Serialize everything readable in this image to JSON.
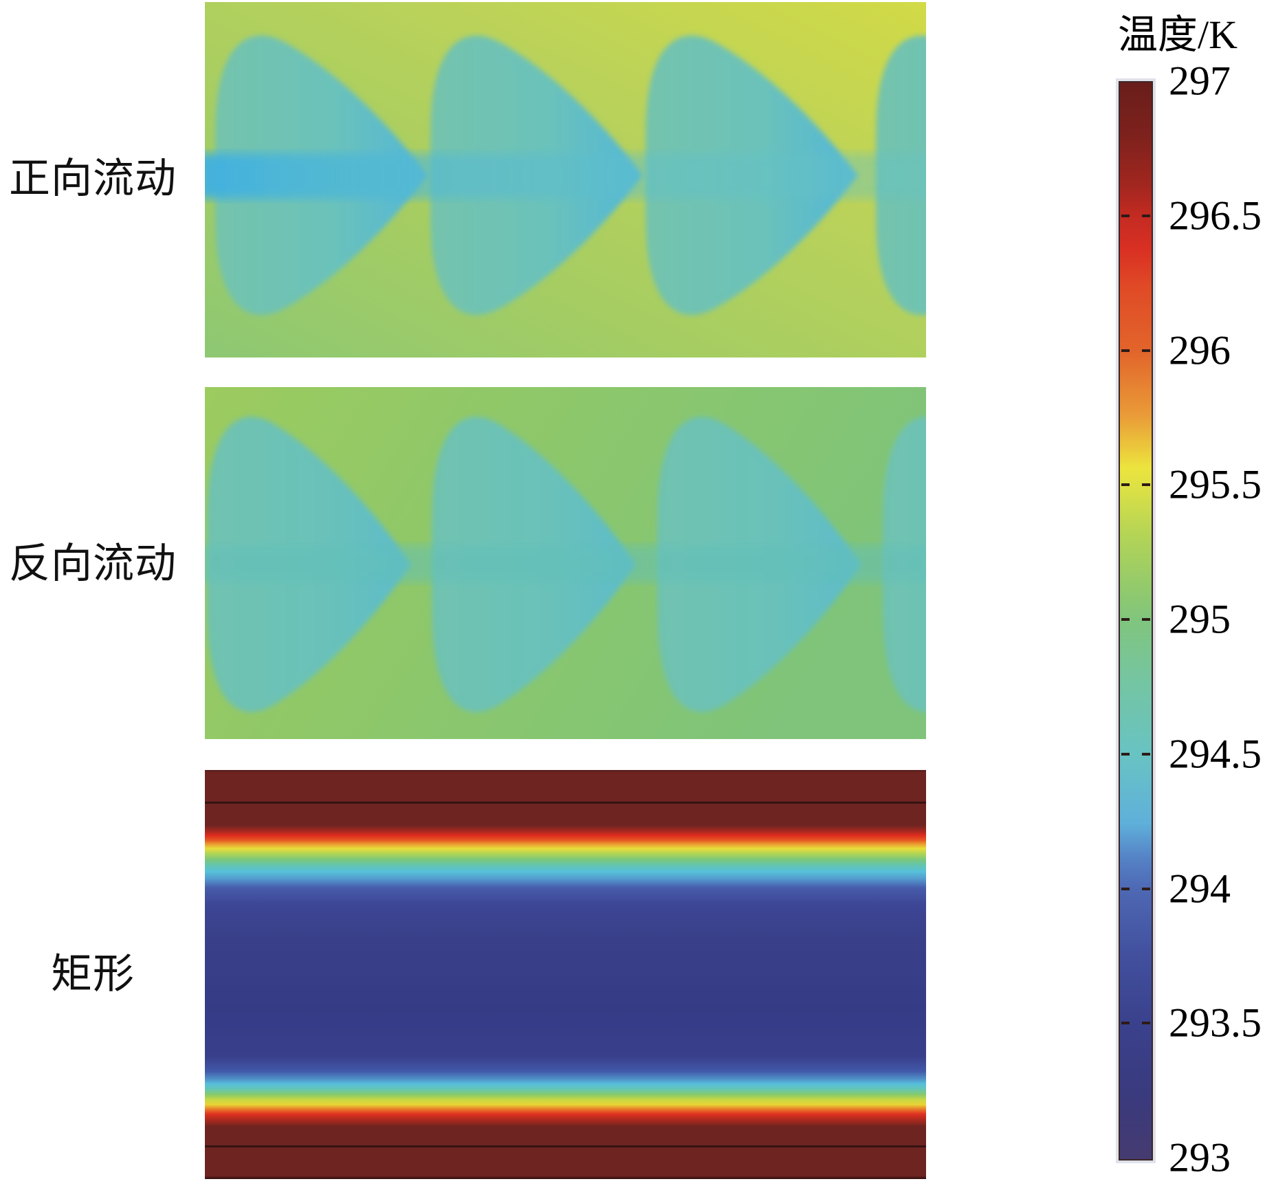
{
  "figure": {
    "kind": "CFD temperature contour comparison of three channel geometries",
    "background": "#ffffff"
  },
  "panels": [
    {
      "label": "正向流动"
    },
    {
      "label": "反向流动"
    },
    {
      "label": "矩形"
    }
  ],
  "colorbar_title": "温度/K",
  "colors": {
    "forward_bg_low": "#8dc873",
    "forward_bg_high": "#d2da46",
    "forward_petal": "#6ec2b6",
    "forward_jet": "#3eafe2",
    "reverse_bg_low": "#7fc47a",
    "reverse_bg_high": "#9ccb5f",
    "reverse_petal": "#69c1b5",
    "wall_hot": "#6e2421",
    "core_cold": "#363b86",
    "text": "#000000"
  },
  "chart_data": {
    "type": "heatmap",
    "subtype": "temperature-contour-panels",
    "panels": [
      {
        "label": "正向流动",
        "pattern": "four periodic rounded fan/petal-shaped cooler zones (~294.4 K) pointing right on a yellow-green warm background (~295.2-295.7 K), with a cool light-blue jet band (~294.2 K) along the horizontal centerline, brightest yellow in top-right corner"
      },
      {
        "label": "反向流动",
        "pattern": "four periodic rounded fan/petal-shaped cooler zones (~294.5 K) pointing right on a green background (~295.0 K), tips touching the next petal near the centerline"
      },
      {
        "label": "矩形",
        "pattern": "straight rectangular channel: hot walls (~297 K, dark maroon) at top and bottom separated by thin black boundary lines, steep boundary-layer gradient red-orange-yellow-green-cyan-blue, cold navy core (~293.2-293.5 K)"
      }
    ],
    "colorbar": {
      "title": "温度/K",
      "unit": "K",
      "min": 293,
      "max": 297,
      "major_tick_step": 0.5,
      "tick_labels": [
        "297",
        "296.5",
        "296",
        "295.5",
        "295",
        "294.5",
        "294",
        "293.5",
        "293"
      ],
      "orientation": "vertical",
      "gradient_stops": [
        {
          "t": 0.0,
          "color": "#691e1b"
        },
        {
          "t": 0.05,
          "color": "#7e211d"
        },
        {
          "t": 0.095,
          "color": "#a1261f"
        },
        {
          "t": 0.125,
          "color": "#c42b21"
        },
        {
          "t": 0.155,
          "color": "#d93023"
        },
        {
          "t": 0.19,
          "color": "#e04a26"
        },
        {
          "t": 0.25,
          "color": "#e2652b"
        },
        {
          "t": 0.31,
          "color": "#ea9c38"
        },
        {
          "t": 0.358,
          "color": "#ece43e"
        },
        {
          "t": 0.38,
          "color": "#d9e046"
        },
        {
          "t": 0.42,
          "color": "#b4d456"
        },
        {
          "t": 0.47,
          "color": "#92ca6c"
        },
        {
          "t": 0.5,
          "color": "#80c57e"
        },
        {
          "t": 0.56,
          "color": "#74c5a4"
        },
        {
          "t": 0.625,
          "color": "#68c3c3"
        },
        {
          "t": 0.688,
          "color": "#5fb0da"
        },
        {
          "t": 0.72,
          "color": "#5583c6"
        },
        {
          "t": 0.75,
          "color": "#4e68b4"
        },
        {
          "t": 0.81,
          "color": "#42509e"
        },
        {
          "t": 0.875,
          "color": "#3a418c"
        },
        {
          "t": 0.94,
          "color": "#3a3a7e"
        },
        {
          "t": 1.0,
          "color": "#453b70"
        }
      ]
    },
    "rect_panel_profile": [
      {
        "t": 0.0,
        "color": "#4f1e1b"
      },
      {
        "t": 0.006,
        "color": "#6e2421"
      },
      {
        "t": 0.135,
        "color": "#6e2421"
      },
      {
        "t": 0.15,
        "color": "#a92920"
      },
      {
        "t": 0.16,
        "color": "#df2c1e"
      },
      {
        "t": 0.172,
        "color": "#e65a21"
      },
      {
        "t": 0.181,
        "color": "#ea9c31"
      },
      {
        "t": 0.192,
        "color": "#e8dd3a"
      },
      {
        "t": 0.205,
        "color": "#aed455"
      },
      {
        "t": 0.22,
        "color": "#79c77f"
      },
      {
        "t": 0.233,
        "color": "#63c5af"
      },
      {
        "t": 0.248,
        "color": "#58c1d9"
      },
      {
        "t": 0.266,
        "color": "#549bce"
      },
      {
        "t": 0.288,
        "color": "#465cab"
      },
      {
        "t": 0.33,
        "color": "#3d4695"
      },
      {
        "t": 0.42,
        "color": "#394089"
      },
      {
        "t": 0.58,
        "color": "#363b86"
      },
      {
        "t": 0.7,
        "color": "#393f8b"
      },
      {
        "t": 0.736,
        "color": "#4158a8"
      },
      {
        "t": 0.754,
        "color": "#4e8cc6"
      },
      {
        "t": 0.767,
        "color": "#57bddd"
      },
      {
        "t": 0.78,
        "color": "#63c6b5"
      },
      {
        "t": 0.793,
        "color": "#85ca6d"
      },
      {
        "t": 0.806,
        "color": "#c7d843"
      },
      {
        "t": 0.818,
        "color": "#e8d435"
      },
      {
        "t": 0.83,
        "color": "#e87629"
      },
      {
        "t": 0.841,
        "color": "#e03120"
      },
      {
        "t": 0.858,
        "color": "#a2281e"
      },
      {
        "t": 0.872,
        "color": "#6e2421"
      },
      {
        "t": 0.992,
        "color": "#6e2421"
      },
      {
        "t": 1.0,
        "color": "#2c0f0d"
      }
    ]
  }
}
